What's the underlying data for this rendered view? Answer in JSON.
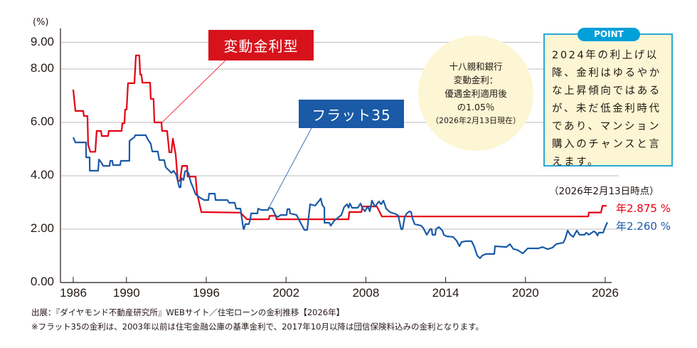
{
  "chart_data": {
    "type": "line",
    "ylabel": "(%)",
    "ylim": [
      0,
      9
    ],
    "xlim": [
      1986,
      2026
    ],
    "y_ticks": [
      "0.00",
      "2.00",
      "4.00",
      "6.00",
      "8.00",
      "9.00"
    ],
    "x_ticks": [
      "1986",
      "1990",
      "1996",
      "2002",
      "2008",
      "2014",
      "2020",
      "2026"
    ],
    "grid": "horizontal",
    "series": [
      {
        "name": "変動金利型",
        "color": "#e60012",
        "step": true,
        "points": [
          [
            1986.0,
            7.23
          ],
          [
            1986.16,
            6.43
          ],
          [
            1986.75,
            6.43
          ],
          [
            1986.8,
            6.24
          ],
          [
            1987.07,
            6.24
          ],
          [
            1987.12,
            5.17
          ],
          [
            1987.28,
            4.9
          ],
          [
            1987.66,
            4.9
          ],
          [
            1987.76,
            5.68
          ],
          [
            1988.09,
            5.68
          ],
          [
            1988.14,
            5.49
          ],
          [
            1988.62,
            5.49
          ],
          [
            1988.67,
            5.68
          ],
          [
            1989.64,
            5.68
          ],
          [
            1989.69,
            5.97
          ],
          [
            1989.85,
            5.97
          ],
          [
            1989.9,
            6.48
          ],
          [
            1990.01,
            6.48
          ],
          [
            1990.12,
            7.47
          ],
          [
            1990.6,
            7.47
          ],
          [
            1990.71,
            8.51
          ],
          [
            1990.97,
            8.51
          ],
          [
            1991.03,
            7.79
          ],
          [
            1991.13,
            7.79
          ],
          [
            1991.19,
            7.49
          ],
          [
            1991.78,
            7.49
          ],
          [
            1991.83,
            6.88
          ],
          [
            1992.04,
            6.88
          ],
          [
            1992.1,
            6.0
          ],
          [
            1992.63,
            6.0
          ],
          [
            1992.68,
            5.68
          ],
          [
            1993.06,
            5.68
          ],
          [
            1993.22,
            4.88
          ],
          [
            1993.38,
            4.88
          ],
          [
            1993.49,
            5.39
          ],
          [
            1993.7,
            4.8
          ],
          [
            1993.86,
            3.81
          ],
          [
            1994.02,
            3.81
          ],
          [
            1994.18,
            4.37
          ],
          [
            1994.56,
            4.37
          ],
          [
            1994.6,
            3.97
          ],
          [
            1995.2,
            3.97
          ],
          [
            1995.3,
            3.36
          ],
          [
            1995.63,
            2.64
          ],
          [
            1998.57,
            2.62
          ],
          [
            1999.05,
            2.37
          ],
          [
            2000.71,
            2.37
          ],
          [
            2000.76,
            2.5
          ],
          [
            2001.24,
            2.5
          ],
          [
            2001.29,
            2.37
          ],
          [
            2006.7,
            2.37
          ],
          [
            2006.75,
            2.64
          ],
          [
            2007.66,
            2.64
          ],
          [
            2007.76,
            2.85
          ],
          [
            2008.83,
            2.85
          ],
          [
            2009.21,
            2.475
          ],
          [
            2024.72,
            2.475
          ],
          [
            2024.77,
            2.625
          ],
          [
            2025.68,
            2.625
          ],
          [
            2025.79,
            2.875
          ],
          [
            2026.1,
            2.875
          ]
        ]
      },
      {
        "name": "フラット35",
        "color": "#1a5aa6",
        "step": false,
        "points": [
          [
            1986.0,
            5.44
          ],
          [
            1986.16,
            5.25
          ],
          [
            1986.96,
            5.25
          ],
          [
            1986.97,
            4.69
          ],
          [
            1987.23,
            4.69
          ],
          [
            1987.24,
            4.19
          ],
          [
            1987.87,
            4.19
          ],
          [
            1987.93,
            4.61
          ],
          [
            1988.09,
            4.51
          ],
          [
            1988.25,
            4.37
          ],
          [
            1988.73,
            4.37
          ],
          [
            1988.78,
            4.56
          ],
          [
            1988.94,
            4.56
          ],
          [
            1988.99,
            4.4
          ],
          [
            1989.53,
            4.4
          ],
          [
            1989.58,
            4.56
          ],
          [
            1990.22,
            4.56
          ],
          [
            1990.23,
            5.31
          ],
          [
            1990.44,
            5.39
          ],
          [
            1990.6,
            5.44
          ],
          [
            1990.65,
            5.52
          ],
          [
            1991.45,
            5.52
          ],
          [
            1991.61,
            5.36
          ],
          [
            1991.83,
            5.2
          ],
          [
            1991.94,
            4.91
          ],
          [
            1992.36,
            4.91
          ],
          [
            1992.47,
            4.59
          ],
          [
            1992.84,
            4.59
          ],
          [
            1992.95,
            4.32
          ],
          [
            1993.22,
            4.19
          ],
          [
            1993.38,
            4.11
          ],
          [
            1993.54,
            4.19
          ],
          [
            1993.75,
            4.03
          ],
          [
            1993.97,
            3.57
          ],
          [
            1994.07,
            3.57
          ],
          [
            1994.13,
            3.92
          ],
          [
            1994.29,
            3.84
          ],
          [
            1994.4,
            4.16
          ],
          [
            1994.5,
            4.19
          ],
          [
            1994.66,
            4.11
          ],
          [
            1994.82,
            3.79
          ],
          [
            1995.04,
            3.52
          ],
          [
            1995.2,
            3.31
          ],
          [
            1995.47,
            3.2
          ],
          [
            1995.84,
            3.09
          ],
          [
            1996.16,
            3.09
          ],
          [
            1996.21,
            3.33
          ],
          [
            1996.64,
            3.33
          ],
          [
            1996.7,
            3.09
          ],
          [
            1997.6,
            3.09
          ],
          [
            1997.71,
            2.99
          ],
          [
            1998.14,
            2.99
          ],
          [
            1998.25,
            2.77
          ],
          [
            1998.57,
            2.77
          ],
          [
            1998.78,
            2.05
          ],
          [
            1998.83,
            2.0
          ],
          [
            1998.94,
            2.19
          ],
          [
            1999.21,
            2.19
          ],
          [
            1999.32,
            2.4
          ],
          [
            1999.37,
            2.59
          ],
          [
            1999.85,
            2.59
          ],
          [
            1999.9,
            2.77
          ],
          [
            2000.12,
            2.72
          ],
          [
            2000.65,
            2.72
          ],
          [
            2000.71,
            2.8
          ],
          [
            2000.97,
            2.77
          ],
          [
            2001.19,
            2.53
          ],
          [
            2001.35,
            2.45
          ],
          [
            2001.61,
            2.53
          ],
          [
            2002.04,
            2.53
          ],
          [
            2002.1,
            2.75
          ],
          [
            2002.26,
            2.75
          ],
          [
            2002.31,
            2.59
          ],
          [
            2002.79,
            2.53
          ],
          [
            2002.95,
            2.37
          ],
          [
            2003.38,
            1.97
          ],
          [
            2003.59,
            1.97
          ],
          [
            2003.81,
            2.93
          ],
          [
            2004.18,
            2.88
          ],
          [
            2004.45,
            3.04
          ],
          [
            2004.61,
            3.15
          ],
          [
            2004.72,
            2.91
          ],
          [
            2004.88,
            2.8
          ],
          [
            2004.89,
            2.24
          ],
          [
            2005.25,
            2.24
          ],
          [
            2005.36,
            2.13
          ],
          [
            2005.63,
            2.32
          ],
          [
            2006.16,
            2.53
          ],
          [
            2006.37,
            2.83
          ],
          [
            2006.59,
            2.93
          ],
          [
            2006.7,
            2.8
          ],
          [
            2006.8,
            2.96
          ],
          [
            2006.96,
            2.8
          ],
          [
            2007.39,
            2.8
          ],
          [
            2007.6,
            2.96
          ],
          [
            2007.76,
            2.77
          ],
          [
            2007.93,
            2.67
          ],
          [
            2008.14,
            2.85
          ],
          [
            2008.3,
            2.67
          ],
          [
            2008.46,
            3.07
          ],
          [
            2008.67,
            2.85
          ],
          [
            2008.78,
            2.91
          ],
          [
            2008.99,
            3.04
          ],
          [
            2009.15,
            2.93
          ],
          [
            2009.32,
            3.07
          ],
          [
            2009.53,
            2.77
          ],
          [
            2009.8,
            2.64
          ],
          [
            2010.28,
            2.56
          ],
          [
            2010.44,
            2.5
          ],
          [
            2010.65,
            2.0
          ],
          [
            2010.76,
            2.0
          ],
          [
            2010.92,
            2.45
          ],
          [
            2011.08,
            2.59
          ],
          [
            2011.29,
            2.67
          ],
          [
            2011.4,
            2.64
          ],
          [
            2011.51,
            2.4
          ],
          [
            2011.67,
            2.19
          ],
          [
            2012.15,
            2.13
          ],
          [
            2012.31,
            2.05
          ],
          [
            2012.58,
            1.79
          ],
          [
            2012.68,
            1.87
          ],
          [
            2012.84,
            2.0
          ],
          [
            2012.95,
            2.0
          ],
          [
            2013.0,
            1.79
          ],
          [
            2013.22,
            1.79
          ],
          [
            2013.27,
            2.0
          ],
          [
            2013.49,
            2.08
          ],
          [
            2013.75,
            1.95
          ],
          [
            2013.86,
            1.79
          ],
          [
            2014.07,
            1.73
          ],
          [
            2014.56,
            1.71
          ],
          [
            2014.82,
            1.57
          ],
          [
            2015.04,
            1.36
          ],
          [
            2015.2,
            1.52
          ],
          [
            2015.52,
            1.55
          ],
          [
            2015.95,
            1.55
          ],
          [
            2016.16,
            1.33
          ],
          [
            2016.37,
            1.01
          ],
          [
            2016.59,
            0.91
          ],
          [
            2016.75,
            1.01
          ],
          [
            2017.02,
            1.07
          ],
          [
            2017.66,
            1.07
          ],
          [
            2017.71,
            1.36
          ],
          [
            2018.57,
            1.33
          ],
          [
            2018.83,
            1.44
          ],
          [
            2019.1,
            1.25
          ],
          [
            2019.37,
            1.23
          ],
          [
            2019.8,
            1.09
          ],
          [
            2020.17,
            1.28
          ],
          [
            2020.97,
            1.28
          ],
          [
            2021.29,
            1.33
          ],
          [
            2021.67,
            1.25
          ],
          [
            2022.04,
            1.31
          ],
          [
            2022.31,
            1.44
          ],
          [
            2022.58,
            1.47
          ],
          [
            2022.84,
            1.49
          ],
          [
            2023.0,
            1.65
          ],
          [
            2023.17,
            1.95
          ],
          [
            2023.38,
            1.79
          ],
          [
            2023.59,
            1.71
          ],
          [
            2023.86,
            1.95
          ],
          [
            2024.07,
            1.79
          ],
          [
            2024.45,
            1.79
          ],
          [
            2024.56,
            1.87
          ],
          [
            2024.77,
            1.79
          ],
          [
            2025.14,
            1.92
          ],
          [
            2025.3,
            1.87
          ],
          [
            2025.41,
            1.76
          ],
          [
            2025.52,
            1.87
          ],
          [
            2025.84,
            1.87
          ],
          [
            2026.0,
            2.08
          ],
          [
            2026.16,
            2.26
          ]
        ]
      }
    ],
    "annotations": {
      "hentai_label": "変動金利型",
      "flat_label": "フラット35",
      "as_of": "（2026年2月13日時点）",
      "hentai_latest": "年2.875 %",
      "flat_latest": "年2.260 %"
    }
  },
  "bank_note": {
    "line1": "十八親和銀行",
    "line2": "変動金利：",
    "line3": "優遇金利適用後",
    "line4": "の1.05％",
    "line5": "（2026年2月13日現在）"
  },
  "point_box": {
    "tab": "POINT",
    "text": "2024年の利上げ以降、金利はゆるやかな上昇傾向ではあるが、未だ低金利時代であり、マンション購入のチャンスと言えます。"
  },
  "footnotes": {
    "source": "出展：『ダイヤモンド不動産研究所』WEBサイト／住宅ローンの金利推移【2026年】",
    "note": "※フラット35の金利は、2003年以前は住宅金融公庫の基準金利で、2017年10月以降は団信保険料込みの金利となります。"
  }
}
